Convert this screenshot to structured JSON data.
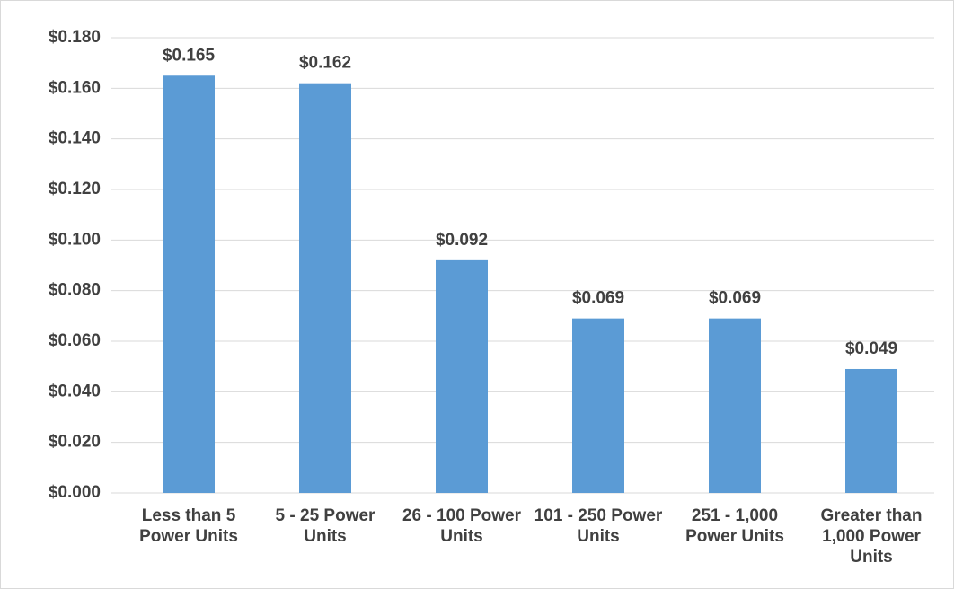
{
  "chart_data": {
    "type": "bar",
    "categories": [
      "Less than 5 Power Units",
      "5 - 25 Power Units",
      "26 - 100 Power Units",
      "101 - 250 Power Units",
      "251 - 1,000 Power Units",
      "Greater than 1,000 Power Units"
    ],
    "values": [
      0.165,
      0.162,
      0.092,
      0.069,
      0.069,
      0.049
    ],
    "value_labels": [
      "$0.165",
      "$0.162",
      "$0.092",
      "$0.069",
      "$0.069",
      "$0.049"
    ],
    "color": "#5b9bd5",
    "ylim": [
      0,
      0.18
    ],
    "yticks": [
      {
        "value": 0,
        "label": "$0.000"
      },
      {
        "value": 0.02,
        "label": "$0.020"
      },
      {
        "value": 0.04,
        "label": "$0.040"
      },
      {
        "value": 0.06,
        "label": "$0.060"
      },
      {
        "value": 0.08,
        "label": "$0.080"
      },
      {
        "value": 0.1,
        "label": "$0.100"
      },
      {
        "value": 0.12,
        "label": "$0.120"
      },
      {
        "value": 0.14,
        "label": "$0.140"
      },
      {
        "value": 0.16,
        "label": "$0.160"
      },
      {
        "value": 0.18,
        "label": "$0.180"
      }
    ],
    "grid": true
  }
}
